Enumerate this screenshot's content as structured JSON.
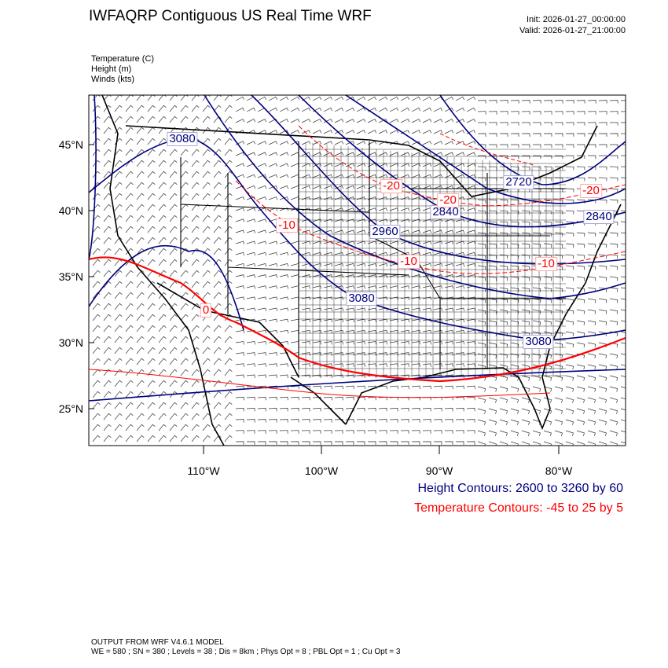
{
  "header": {
    "title": "IWFAQRP Contiguous US Real Time WRF",
    "init": "Init: 2026-01-27_00:00:00",
    "valid": "Valid: 2026-01-27_21:00:00"
  },
  "fields": [
    "Temperature   (C)",
    "Height   (m)",
    "Winds   (kts)"
  ],
  "axes": {
    "lat_labels": [
      "45°N",
      "40°N",
      "35°N",
      "30°N",
      "25°N"
    ],
    "lon_labels": [
      "110°W",
      "100°W",
      "90°W",
      "80°W"
    ]
  },
  "contour_labels": {
    "height": [
      "3080",
      "2720",
      "2840",
      "2840",
      "2960",
      "3080",
      "3080"
    ],
    "temperature": [
      "-20",
      "-20",
      "-20",
      "-10",
      "-10",
      "-10",
      "0"
    ]
  },
  "legend": {
    "height": "Height Contours: 2600 to 3260 by 60",
    "temperature": "Temperature Contours: -45 to 25 by 5"
  },
  "colors": {
    "height_contour": "#00007f",
    "temperature_contour": "#ff0000",
    "map_lines": "#000000"
  },
  "footer": {
    "line1": "OUTPUT FROM WRF V4.6.1 MODEL",
    "line2": "WE = 580 ; SN = 380 ; Levels = 38 ; Dis = 8km ; Phys Opt = 8 ; PBL Opt = 1 ; Cu Opt = 3"
  }
}
